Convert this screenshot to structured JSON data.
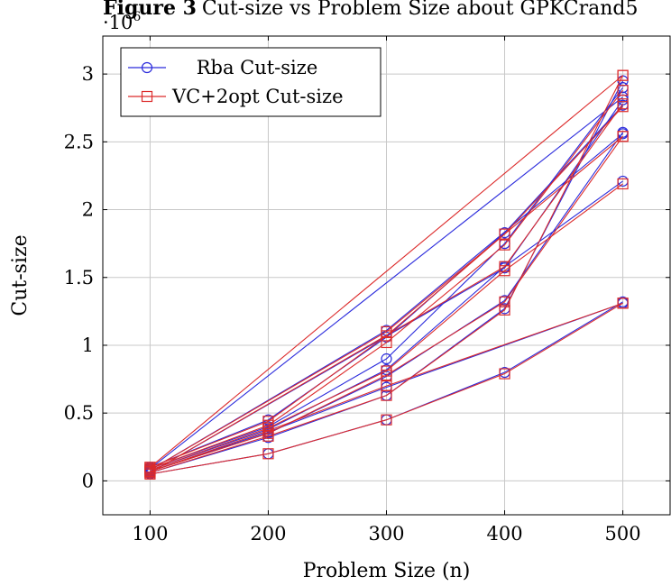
{
  "chart_data": {
    "type": "line",
    "title_bold": "Figure 3",
    "title_rest": "Cut-size vs Problem Size about GPKCrand5",
    "xlabel": "Problem Size (n)",
    "ylabel": "Cut-size",
    "y_multiplier": "·10",
    "y_exponent": "6",
    "xlim": [
      60,
      540
    ],
    "ylim": [
      -0.25,
      3.28
    ],
    "xticks": [
      100,
      200,
      300,
      400,
      500
    ],
    "yticks": [
      0,
      0.5,
      1,
      1.5,
      2,
      2.5,
      3
    ],
    "grid": true,
    "legend_position": "top-left",
    "colors": {
      "rba": "#2b2bdc",
      "vc": "#dc2b2b"
    },
    "series": [
      {
        "name": "Rba Cut-size",
        "color": "#2b2bdc",
        "marker": "circle",
        "lines": [
          {
            "x": [
              100,
              200,
              300,
              400,
              500
            ],
            "y": [
              0.05,
              0.2,
              0.45,
              0.8,
              1.32
            ]
          },
          {
            "x": [
              100,
              200,
              300,
              400,
              500
            ],
            "y": [
              0.06,
              0.32,
              0.63,
              1.27,
              2.95
            ]
          },
          {
            "x": [
              100,
              200,
              300,
              400,
              500
            ],
            "y": [
              0.07,
              0.35,
              0.77,
              1.33,
              2.57
            ]
          },
          {
            "x": [
              100,
              200,
              300,
              400,
              500
            ],
            "y": [
              0.08,
              0.38,
              0.82,
              1.58,
              2.21
            ]
          },
          {
            "x": [
              100,
              200,
              300,
              400,
              500
            ],
            "y": [
              0.09,
              0.4,
              0.9,
              1.75,
              2.9
            ]
          },
          {
            "x": [
              100,
              200,
              300,
              400,
              500
            ],
            "y": [
              0.1,
              0.45,
              1.06,
              1.83,
              2.77
            ]
          },
          {
            "x": [
              100,
              300,
              500
            ],
            "y": [
              0.08,
              1.11,
              2.56
            ]
          },
          {
            "x": [
              100,
              200,
              300,
              500
            ],
            "y": [
              0.07,
              0.36,
              0.69,
              1.31
            ]
          },
          {
            "x": [
              100,
              500
            ],
            "y": [
              0.09,
              2.83
            ]
          },
          {
            "x": [
              100,
              400,
              500
            ],
            "y": [
              0.06,
              1.57,
              2.81
            ]
          }
        ]
      },
      {
        "name": "VC+2opt Cut-size",
        "color": "#dc2b2b",
        "marker": "square",
        "lines": [
          {
            "x": [
              100,
              200,
              300,
              400,
              500
            ],
            "y": [
              0.05,
              0.2,
              0.45,
              0.79,
              1.31
            ]
          },
          {
            "x": [
              100,
              200,
              300,
              400,
              500
            ],
            "y": [
              0.06,
              0.33,
              0.63,
              1.26,
              2.99
            ]
          },
          {
            "x": [
              100,
              200,
              300,
              400,
              500
            ],
            "y": [
              0.07,
              0.35,
              0.78,
              1.32,
              2.54
            ]
          },
          {
            "x": [
              100,
              200,
              300,
              400,
              500
            ],
            "y": [
              0.08,
              0.39,
              0.81,
              1.55,
              2.19
            ]
          },
          {
            "x": [
              100,
              200,
              300,
              400,
              500
            ],
            "y": [
              0.09,
              0.41,
              1.02,
              1.74,
              2.88
            ]
          },
          {
            "x": [
              100,
              200,
              300,
              400,
              500
            ],
            "y": [
              0.1,
              0.44,
              1.07,
              1.82,
              2.76
            ]
          },
          {
            "x": [
              100,
              300,
              500
            ],
            "y": [
              0.08,
              1.1,
              2.54
            ]
          },
          {
            "x": [
              100,
              200,
              300,
              500
            ],
            "y": [
              0.07,
              0.37,
              0.7,
              1.31
            ]
          },
          {
            "x": [
              100,
              500
            ],
            "y": [
              0.1,
              2.99
            ]
          },
          {
            "x": [
              100,
              400,
              500
            ],
            "y": [
              0.06,
              1.58,
              2.78
            ]
          }
        ]
      }
    ]
  }
}
